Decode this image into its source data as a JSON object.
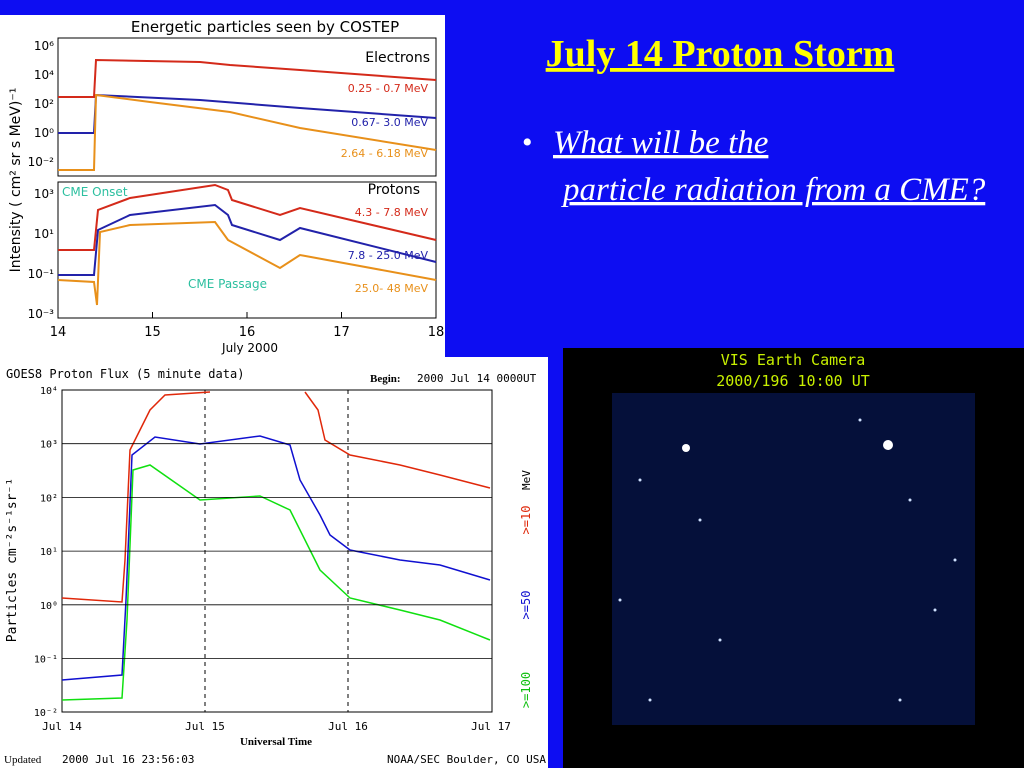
{
  "slide": {
    "title": "July 14 Proton Storm",
    "bullets": [
      "What will be the particle radiation from a CME?"
    ]
  },
  "costep": {
    "title": "Energetic particles seen by COSTEP",
    "y_label": "Intensity ( cm² sr s MeV)⁻¹",
    "x_label": "July 2000",
    "x_ticks": [
      "14",
      "15",
      "16",
      "17",
      "18"
    ],
    "electrons": {
      "label": "Electrons",
      "y_ticks": [
        "10⁶",
        "10⁴",
        "10²",
        "10⁰",
        "10⁻²"
      ],
      "channels": [
        "0.25 - 0.7 MeV",
        "0.67- 3.0 MeV",
        "2.64 - 6.18 MeV"
      ]
    },
    "protons": {
      "label": "Protons",
      "y_ticks": [
        "10³",
        "10¹",
        "10⁻¹",
        "10⁻³"
      ],
      "channels": [
        "4.3 - 7.8 MeV",
        "7.8 - 25.0 MeV",
        "25.0- 48 MeV"
      ]
    },
    "annotations": [
      "CME Onset",
      "CME Passage"
    ]
  },
  "goes": {
    "title": "GOES8 Proton Flux (5 minute data)",
    "begin_label": "Begin:",
    "begin": "2000 Jul 14 0000UT",
    "y_label": "Particles cm⁻²s⁻¹sr⁻¹",
    "x_label": "Universal Time",
    "x_ticks": [
      "Jul 14",
      "Jul 15",
      "Jul 16",
      "Jul 17"
    ],
    "y_ticks": [
      "10⁴",
      "10³",
      "10²",
      "10¹",
      "10⁰",
      "10⁻¹",
      "10⁻²"
    ],
    "legend": [
      ">=10",
      ">=50",
      ">=100"
    ],
    "unit": "MeV",
    "updated_label": "Updated",
    "updated": "2000 Jul 16 23:56:03",
    "credit": "NOAA/SEC Boulder, CO USA"
  },
  "camera": {
    "title": "VIS Earth Camera",
    "subtitle": "2000/196 10:00 UT"
  }
}
